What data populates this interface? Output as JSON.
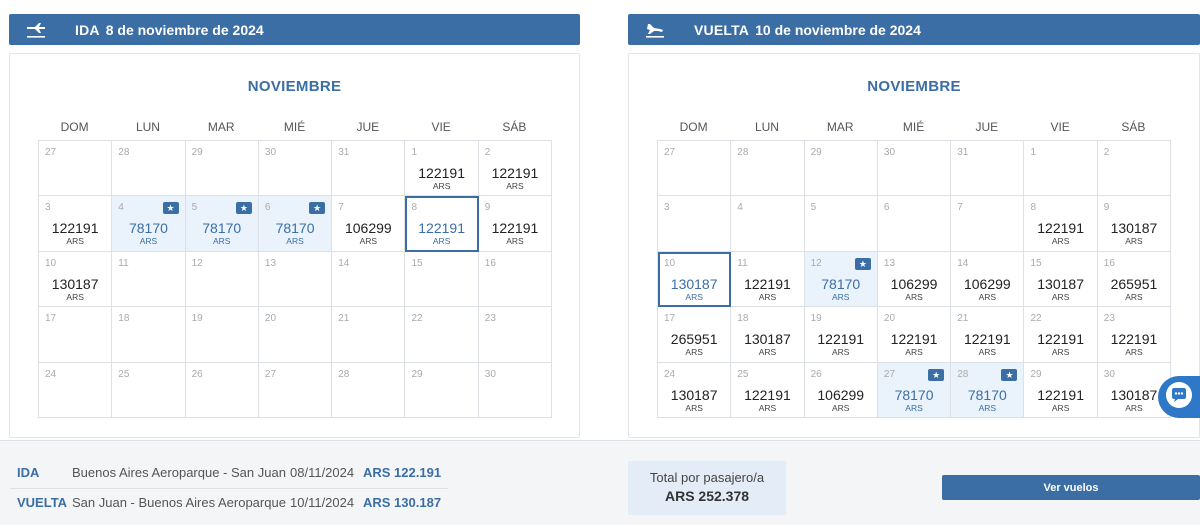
{
  "outbound": {
    "type_label": "IDA",
    "date_label": "8 de noviembre de 2024",
    "month": "NOVIEMBRE",
    "weekdays": [
      "DOM",
      "LUN",
      "MAR",
      "MIÉ",
      "JUE",
      "VIE",
      "SÁB"
    ],
    "cells": [
      {
        "day": "27",
        "price": "",
        "cur": "",
        "promo": false,
        "selected": false
      },
      {
        "day": "28",
        "price": "",
        "cur": "",
        "promo": false,
        "selected": false
      },
      {
        "day": "29",
        "price": "",
        "cur": "",
        "promo": false,
        "selected": false
      },
      {
        "day": "30",
        "price": "",
        "cur": "",
        "promo": false,
        "selected": false
      },
      {
        "day": "31",
        "price": "",
        "cur": "",
        "promo": false,
        "selected": false
      },
      {
        "day": "1",
        "price": "122191",
        "cur": "ARS",
        "promo": false,
        "selected": false
      },
      {
        "day": "2",
        "price": "122191",
        "cur": "ARS",
        "promo": false,
        "selected": false
      },
      {
        "day": "3",
        "price": "122191",
        "cur": "ARS",
        "promo": false,
        "selected": false
      },
      {
        "day": "4",
        "price": "78170",
        "cur": "ARS",
        "promo": true,
        "selected": false
      },
      {
        "day": "5",
        "price": "78170",
        "cur": "ARS",
        "promo": true,
        "selected": false
      },
      {
        "day": "6",
        "price": "78170",
        "cur": "ARS",
        "promo": true,
        "selected": false
      },
      {
        "day": "7",
        "price": "106299",
        "cur": "ARS",
        "promo": false,
        "selected": false
      },
      {
        "day": "8",
        "price": "122191",
        "cur": "ARS",
        "promo": false,
        "selected": true
      },
      {
        "day": "9",
        "price": "122191",
        "cur": "ARS",
        "promo": false,
        "selected": false
      },
      {
        "day": "10",
        "price": "130187",
        "cur": "ARS",
        "promo": false,
        "selected": false
      },
      {
        "day": "11",
        "price": "",
        "cur": "",
        "promo": false,
        "selected": false
      },
      {
        "day": "12",
        "price": "",
        "cur": "",
        "promo": false,
        "selected": false
      },
      {
        "day": "13",
        "price": "",
        "cur": "",
        "promo": false,
        "selected": false
      },
      {
        "day": "14",
        "price": "",
        "cur": "",
        "promo": false,
        "selected": false
      },
      {
        "day": "15",
        "price": "",
        "cur": "",
        "promo": false,
        "selected": false
      },
      {
        "day": "16",
        "price": "",
        "cur": "",
        "promo": false,
        "selected": false
      },
      {
        "day": "17",
        "price": "",
        "cur": "",
        "promo": false,
        "selected": false
      },
      {
        "day": "18",
        "price": "",
        "cur": "",
        "promo": false,
        "selected": false
      },
      {
        "day": "19",
        "price": "",
        "cur": "",
        "promo": false,
        "selected": false
      },
      {
        "day": "20",
        "price": "",
        "cur": "",
        "promo": false,
        "selected": false
      },
      {
        "day": "21",
        "price": "",
        "cur": "",
        "promo": false,
        "selected": false
      },
      {
        "day": "22",
        "price": "",
        "cur": "",
        "promo": false,
        "selected": false
      },
      {
        "day": "23",
        "price": "",
        "cur": "",
        "promo": false,
        "selected": false
      },
      {
        "day": "24",
        "price": "",
        "cur": "",
        "promo": false,
        "selected": false
      },
      {
        "day": "25",
        "price": "",
        "cur": "",
        "promo": false,
        "selected": false
      },
      {
        "day": "26",
        "price": "",
        "cur": "",
        "promo": false,
        "selected": false
      },
      {
        "day": "27",
        "price": "",
        "cur": "",
        "promo": false,
        "selected": false
      },
      {
        "day": "28",
        "price": "",
        "cur": "",
        "promo": false,
        "selected": false
      },
      {
        "day": "29",
        "price": "",
        "cur": "",
        "promo": false,
        "selected": false
      },
      {
        "day": "30",
        "price": "",
        "cur": "",
        "promo": false,
        "selected": false
      }
    ]
  },
  "return": {
    "type_label": "VUELTA",
    "date_label": "10 de noviembre de 2024",
    "month": "NOVIEMBRE",
    "weekdays": [
      "DOM",
      "LUN",
      "MAR",
      "MIÉ",
      "JUE",
      "VIE",
      "SÁB"
    ],
    "cells": [
      {
        "day": "27",
        "price": "",
        "cur": "",
        "promo": false,
        "selected": false
      },
      {
        "day": "28",
        "price": "",
        "cur": "",
        "promo": false,
        "selected": false
      },
      {
        "day": "29",
        "price": "",
        "cur": "",
        "promo": false,
        "selected": false
      },
      {
        "day": "30",
        "price": "",
        "cur": "",
        "promo": false,
        "selected": false
      },
      {
        "day": "31",
        "price": "",
        "cur": "",
        "promo": false,
        "selected": false
      },
      {
        "day": "1",
        "price": "",
        "cur": "",
        "promo": false,
        "selected": false
      },
      {
        "day": "2",
        "price": "",
        "cur": "",
        "promo": false,
        "selected": false
      },
      {
        "day": "3",
        "price": "",
        "cur": "",
        "promo": false,
        "selected": false
      },
      {
        "day": "4",
        "price": "",
        "cur": "",
        "promo": false,
        "selected": false
      },
      {
        "day": "5",
        "price": "",
        "cur": "",
        "promo": false,
        "selected": false
      },
      {
        "day": "6",
        "price": "",
        "cur": "",
        "promo": false,
        "selected": false
      },
      {
        "day": "7",
        "price": "",
        "cur": "",
        "promo": false,
        "selected": false
      },
      {
        "day": "8",
        "price": "122191",
        "cur": "ARS",
        "promo": false,
        "selected": false
      },
      {
        "day": "9",
        "price": "130187",
        "cur": "ARS",
        "promo": false,
        "selected": false
      },
      {
        "day": "10",
        "price": "130187",
        "cur": "ARS",
        "promo": false,
        "selected": true
      },
      {
        "day": "11",
        "price": "122191",
        "cur": "ARS",
        "promo": false,
        "selected": false
      },
      {
        "day": "12",
        "price": "78170",
        "cur": "ARS",
        "promo": true,
        "selected": false
      },
      {
        "day": "13",
        "price": "106299",
        "cur": "ARS",
        "promo": false,
        "selected": false
      },
      {
        "day": "14",
        "price": "106299",
        "cur": "ARS",
        "promo": false,
        "selected": false
      },
      {
        "day": "15",
        "price": "130187",
        "cur": "ARS",
        "promo": false,
        "selected": false
      },
      {
        "day": "16",
        "price": "265951",
        "cur": "ARS",
        "promo": false,
        "selected": false
      },
      {
        "day": "17",
        "price": "265951",
        "cur": "ARS",
        "promo": false,
        "selected": false
      },
      {
        "day": "18",
        "price": "130187",
        "cur": "ARS",
        "promo": false,
        "selected": false
      },
      {
        "day": "19",
        "price": "122191",
        "cur": "ARS",
        "promo": false,
        "selected": false
      },
      {
        "day": "20",
        "price": "122191",
        "cur": "ARS",
        "promo": false,
        "selected": false
      },
      {
        "day": "21",
        "price": "122191",
        "cur": "ARS",
        "promo": false,
        "selected": false
      },
      {
        "day": "22",
        "price": "122191",
        "cur": "ARS",
        "promo": false,
        "selected": false
      },
      {
        "day": "23",
        "price": "122191",
        "cur": "ARS",
        "promo": false,
        "selected": false
      },
      {
        "day": "24",
        "price": "130187",
        "cur": "ARS",
        "promo": false,
        "selected": false
      },
      {
        "day": "25",
        "price": "122191",
        "cur": "ARS",
        "promo": false,
        "selected": false
      },
      {
        "day": "26",
        "price": "106299",
        "cur": "ARS",
        "promo": false,
        "selected": false
      },
      {
        "day": "27",
        "price": "78170",
        "cur": "ARS",
        "promo": true,
        "selected": false
      },
      {
        "day": "28",
        "price": "78170",
        "cur": "ARS",
        "promo": true,
        "selected": false
      },
      {
        "day": "29",
        "price": "122191",
        "cur": "ARS",
        "promo": false,
        "selected": false
      },
      {
        "day": "30",
        "price": "130187",
        "cur": "ARS",
        "promo": false,
        "selected": false
      }
    ]
  },
  "summary": {
    "outbound": {
      "label": "IDA",
      "route": "Buenos Aires Aeroparque - San Juan",
      "date": "08/11/2024",
      "amount": "ARS 122.191"
    },
    "return": {
      "label": "VUELTA",
      "route": "San Juan - Buenos Aires Aeroparque",
      "date": "10/11/2024",
      "amount": "ARS 130.187"
    },
    "total_label": "Total por pasajero/a",
    "total_amount": "ARS 252.378",
    "cta_label": "Ver vuelos"
  },
  "icons": {
    "outbound": "plane-departure-icon",
    "return": "plane-arrival-icon",
    "promo": "star-badge-icon",
    "chat": "chat-icon"
  },
  "colors": {
    "accent": "#3a6ea5",
    "promo_bg": "#eaf2fb",
    "chat": "#2e78c7"
  }
}
